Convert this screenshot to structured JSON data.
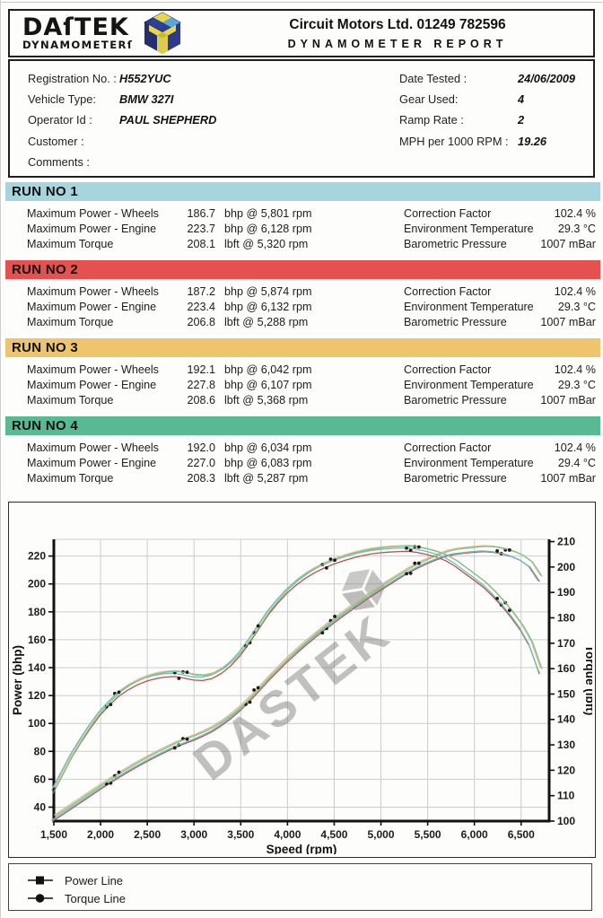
{
  "header": {
    "logo_text": "DAſTEK",
    "logo_sub": "DYNAMOMETERſ",
    "company": "Circuit Motors Ltd. 01249 782596",
    "report_title": "DYNAMOMETER REPORT"
  },
  "info": {
    "left": [
      {
        "label": "Registration No. :",
        "value": "H552YUC"
      },
      {
        "label": "Vehicle Type:",
        "value": "BMW 327I"
      },
      {
        "label": "Operator Id :",
        "value": "PAUL SHEPHERD"
      },
      {
        "label": "Customer :",
        "value": ""
      },
      {
        "label": "Comments :",
        "value": ""
      }
    ],
    "right": [
      {
        "label": "Date Tested :",
        "value": "24/06/2009"
      },
      {
        "label": "Gear Used:",
        "value": "4"
      },
      {
        "label": "Ramp Rate :",
        "value": "2"
      },
      {
        "label": "MPH per 1000 RPM :",
        "value": "19.26"
      }
    ]
  },
  "runs": [
    {
      "title": "RUN NO 1",
      "color": "#a7d5dd",
      "metrics": [
        {
          "label": "Maximum Power - Wheels",
          "value": "186.7",
          "detail": "bhp @ 5,801 rpm"
        },
        {
          "label": "Maximum Power - Engine",
          "value": "223.7",
          "detail": "bhp @ 6,128 rpm"
        },
        {
          "label": "Maximum Torque",
          "value": "208.1",
          "detail": "lbft @ 5,320 rpm"
        }
      ],
      "conditions": [
        {
          "label": "Correction Factor",
          "value": "102.4 %"
        },
        {
          "label": "Environment Temperature",
          "value": "29.3 °C"
        },
        {
          "label": "Barometric Pressure",
          "value": "1007 mBar"
        }
      ]
    },
    {
      "title": "RUN NO 2",
      "color": "#e4514e",
      "metrics": [
        {
          "label": "Maximum Power - Wheels",
          "value": "187.2",
          "detail": "bhp @ 5,874 rpm"
        },
        {
          "label": "Maximum Power - Engine",
          "value": "223.4",
          "detail": "bhp @ 6,132 rpm"
        },
        {
          "label": "Maximum Torque",
          "value": "206.8",
          "detail": "lbft @ 5,288 rpm"
        }
      ],
      "conditions": [
        {
          "label": "Correction Factor",
          "value": "102.4 %"
        },
        {
          "label": "Environment Temperature",
          "value": "29.3 °C"
        },
        {
          "label": "Barometric Pressure",
          "value": "1007 mBar"
        }
      ]
    },
    {
      "title": "RUN NO 3",
      "color": "#eec46c",
      "metrics": [
        {
          "label": "Maximum Power - Wheels",
          "value": "192.1",
          "detail": "bhp @ 6,042 rpm"
        },
        {
          "label": "Maximum Power - Engine",
          "value": "227.8",
          "detail": "bhp @ 6,107 rpm"
        },
        {
          "label": "Maximum Torque",
          "value": "208.6",
          "detail": "lbft @ 5,368 rpm"
        }
      ],
      "conditions": [
        {
          "label": "Correction Factor",
          "value": "102.4 %"
        },
        {
          "label": "Environment Temperature",
          "value": "29.3 °C"
        },
        {
          "label": "Barometric Pressure",
          "value": "1007 mBar"
        }
      ]
    },
    {
      "title": "RUN NO 4",
      "color": "#58ba92",
      "metrics": [
        {
          "label": "Maximum Power - Wheels",
          "value": "192.0",
          "detail": "bhp @ 6,034 rpm"
        },
        {
          "label": "Maximum Power - Engine",
          "value": "227.0",
          "detail": "bhp @ 6,083 rpm"
        },
        {
          "label": "Maximum Torque",
          "value": "208.3",
          "detail": "lbft @ 5,287 rpm"
        }
      ],
      "conditions": [
        {
          "label": "Correction Factor",
          "value": "102.4 %"
        },
        {
          "label": "Environment Temperature",
          "value": "29.4 °C"
        },
        {
          "label": "Barometric Pressure",
          "value": "1007 mBar"
        }
      ]
    }
  ],
  "chart_data": {
    "type": "line",
    "xlabel": "Speed (rpm)",
    "ylabel_left": "Power (bhp)",
    "ylabel_right": "Torque (lbft)",
    "x_range": [
      1500,
      6800
    ],
    "x_ticks": [
      1500,
      2000,
      2500,
      3000,
      3500,
      4000,
      4500,
      5000,
      5500,
      6000,
      6500
    ],
    "y_left_range": [
      30,
      232
    ],
    "y_left_ticks": [
      40,
      60,
      80,
      100,
      120,
      140,
      160,
      180,
      200,
      220
    ],
    "y_right_range": [
      100,
      210.9
    ],
    "y_right_ticks": [
      100,
      110,
      120,
      130,
      140,
      150,
      160,
      170,
      180,
      190,
      200,
      210
    ],
    "grid": true,
    "watermark": {
      "text": "DASTEK",
      "angle": -38
    },
    "rpm": [
      1500,
      1600,
      1700,
      1800,
      1900,
      2000,
      2100,
      2200,
      2300,
      2400,
      2500,
      2600,
      2700,
      2800,
      2900,
      3000,
      3100,
      3200,
      3300,
      3400,
      3500,
      3600,
      3700,
      3800,
      3900,
      4000,
      4100,
      4200,
      4300,
      4400,
      4500,
      4600,
      4700,
      4800,
      4900,
      5000,
      5100,
      5200,
      5300,
      5400,
      5500,
      5600,
      5700,
      5800,
      5900,
      6000,
      6100,
      6200,
      6300,
      6400,
      6500,
      6600,
      6700
    ],
    "power_bhp": [
      32.3,
      36.6,
      41.1,
      45.6,
      50.1,
      54.6,
      59,
      63.2,
      67.2,
      71.1,
      74.7,
      78.2,
      81.5,
      84.7,
      87.4,
      89.9,
      92.8,
      96.2,
      100.5,
      105.5,
      111.3,
      117.9,
      125,
      132.4,
      139.2,
      145.9,
      152.1,
      157.9,
      163.5,
      168.8,
      173.9,
      178.9,
      183.8,
      188.5,
      193.1,
      197.5,
      201.7,
      205.9,
      210,
      213.5,
      216.6,
      219.4,
      221.8,
      223.3,
      224.1,
      224.8,
      225.3,
      224.9,
      223.7,
      221.8,
      219,
      214.2,
      204.1
    ],
    "torque_lbft": [
      113,
      120,
      127,
      133,
      138.5,
      143.5,
      147.5,
      151,
      153.5,
      155.5,
      157,
      158,
      158.6,
      158.8,
      158.2,
      157.4,
      157.2,
      158,
      160,
      163,
      167,
      172,
      177.5,
      183,
      187.5,
      191.5,
      194.8,
      197.5,
      199.7,
      201.5,
      203,
      204.3,
      205.4,
      206.3,
      207,
      207.5,
      207.8,
      208,
      208.1,
      207.6,
      206.8,
      205.8,
      204.4,
      202.2,
      199.5,
      196.8,
      194,
      190.5,
      186.5,
      182,
      177,
      170.5,
      160
    ],
    "run_series": [
      {
        "name": "Run 1",
        "color": "#6fbfc4",
        "power_offset": -1.6,
        "torque_offset": -0.6
      },
      {
        "name": "Run 2",
        "color": "#c14f4a",
        "power_offset": -2.1,
        "torque_offset": -1.9
      },
      {
        "name": "Run 3",
        "color": "#e0b98c",
        "power_offset": 2.2,
        "torque_offset": 0.4
      },
      {
        "name": "Run 4",
        "color": "#7cc48b",
        "power_offset": 1.6,
        "torque_offset": 0.1
      }
    ],
    "marker_rpms": [
      2130,
      2860,
      3620,
      4440,
      5340,
      6310
    ]
  },
  "legend": {
    "items": [
      {
        "marker": "square",
        "label": "Power Line"
      },
      {
        "marker": "circle",
        "label": "Torque Line"
      }
    ]
  }
}
